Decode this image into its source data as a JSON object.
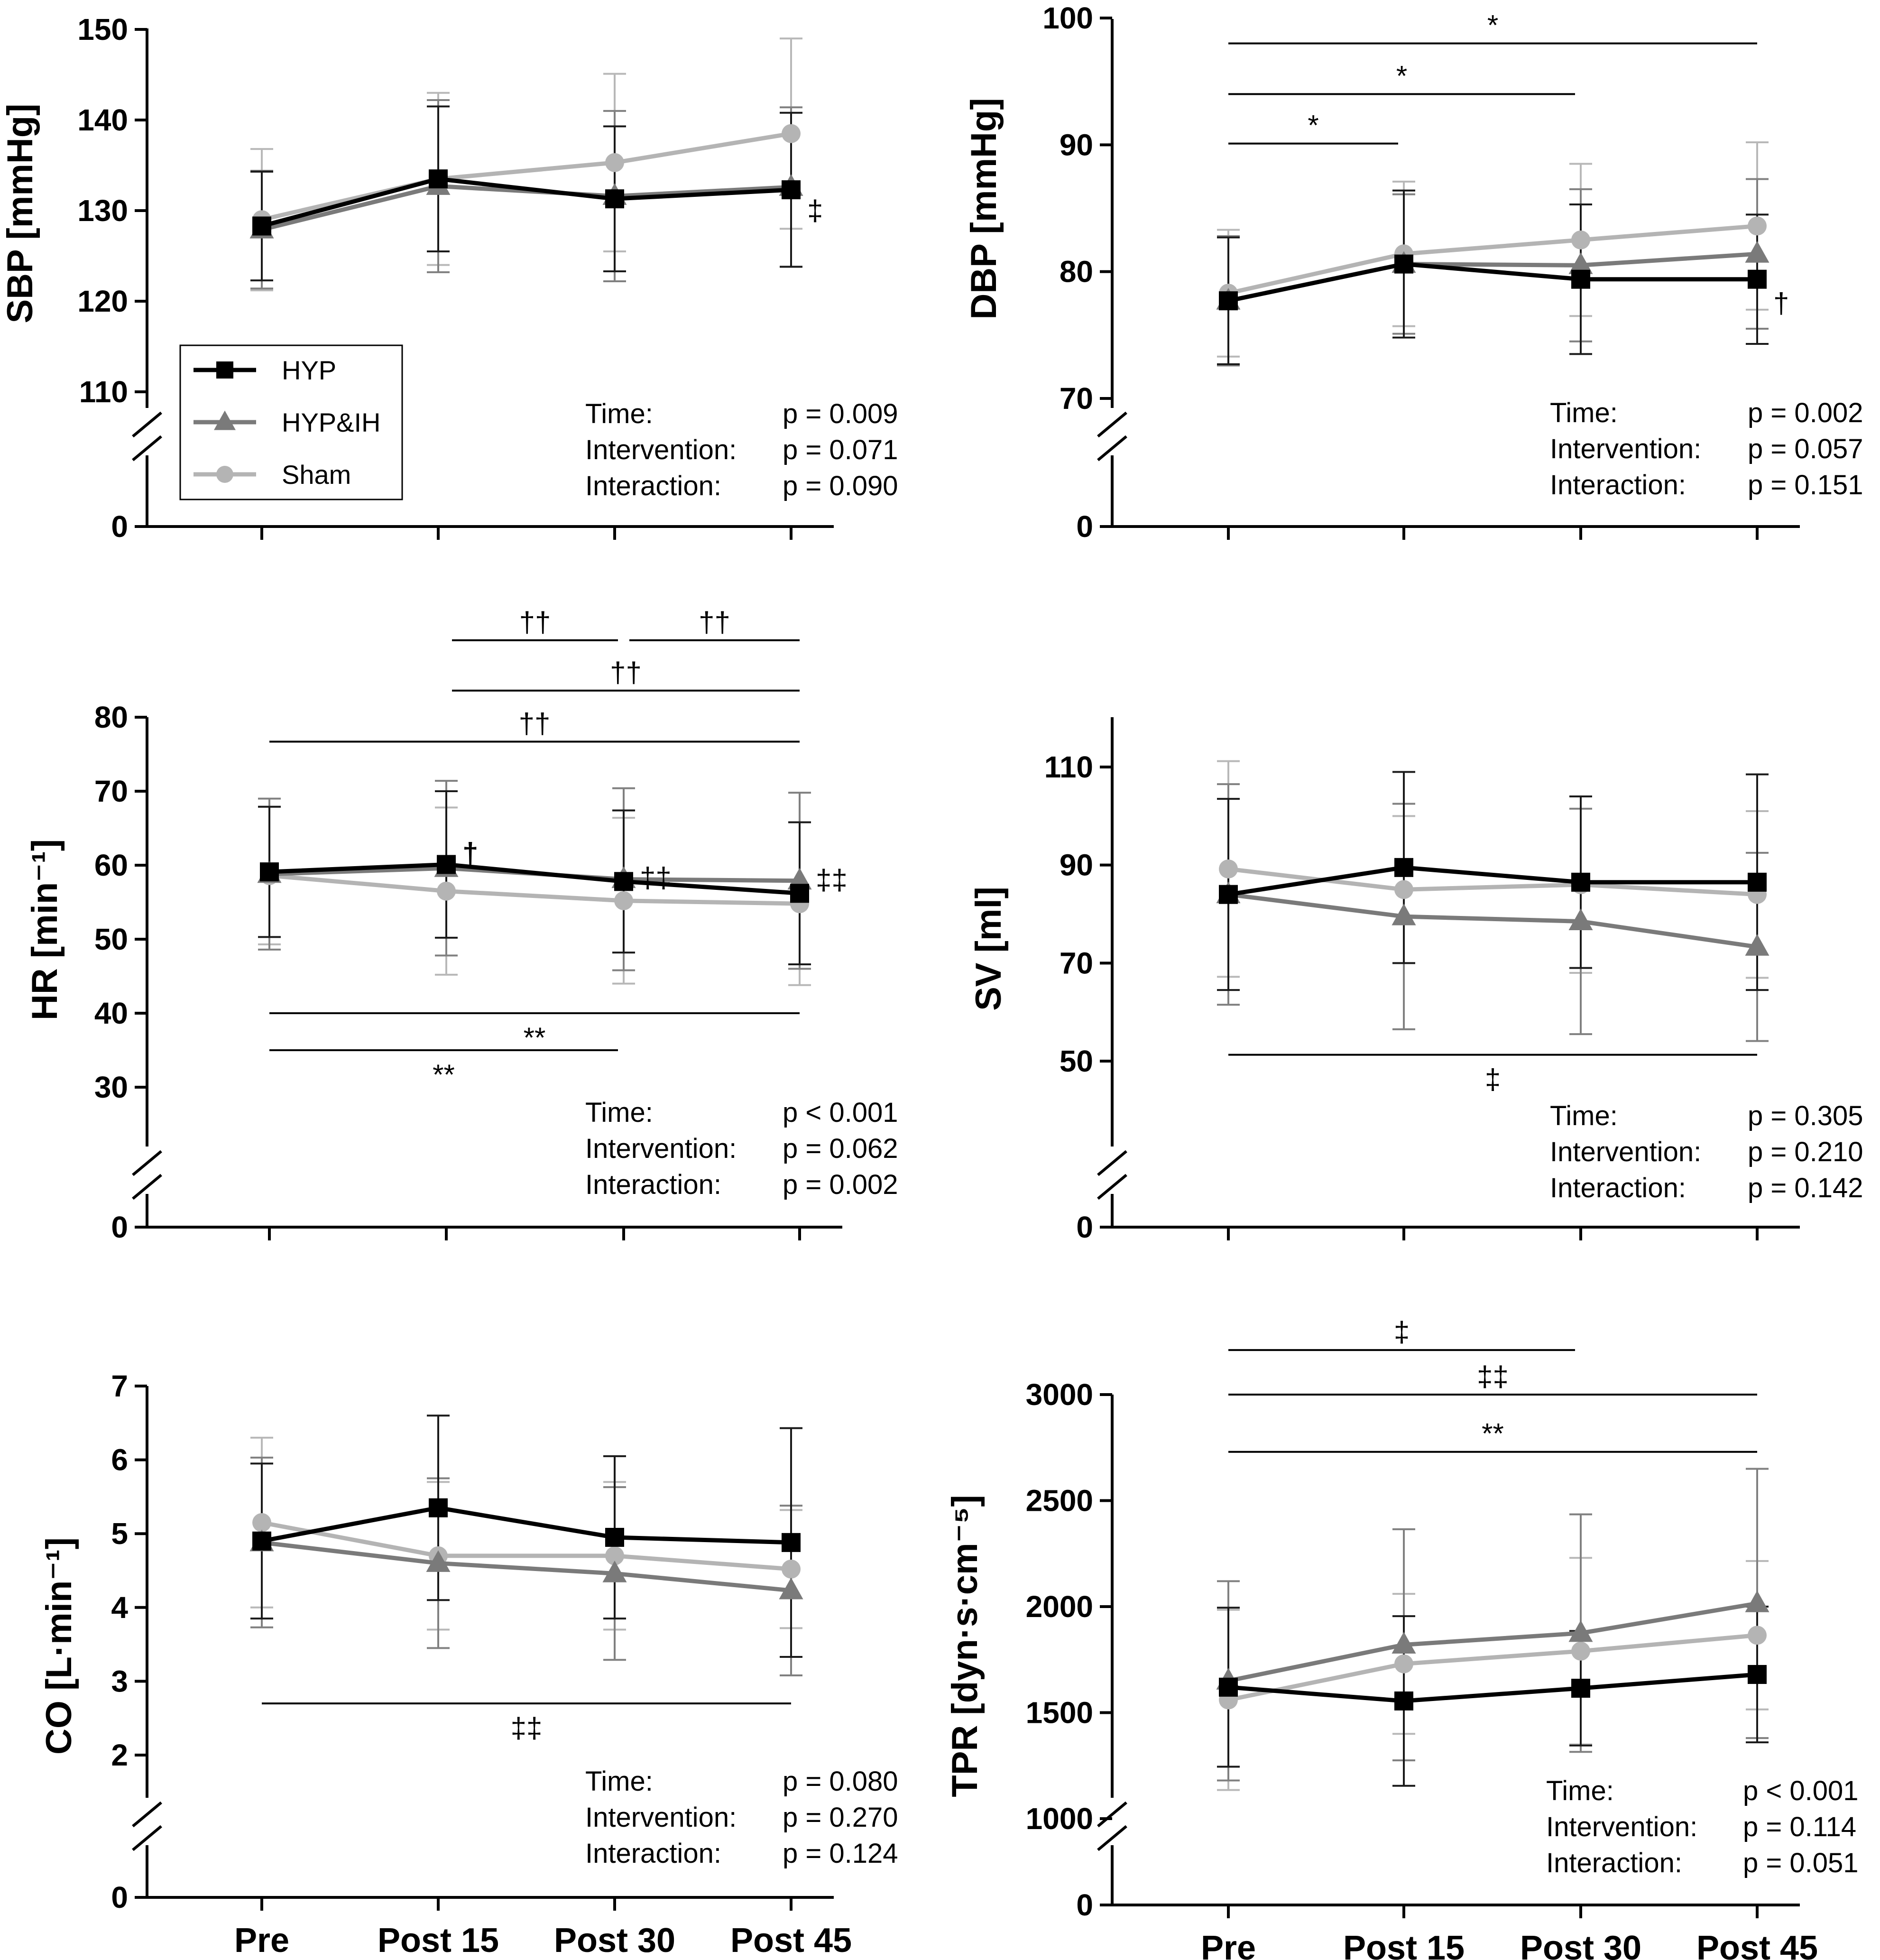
{
  "figure": {
    "x_categories": [
      "Pre",
      "Post 15",
      "Post 30",
      "Post 45"
    ],
    "legend": [
      {
        "name": "HYP",
        "marker": "square",
        "color": "#000000"
      },
      {
        "name": "HYP&IH",
        "marker": "triangle",
        "color": "#7a7a7a"
      },
      {
        "name": "Sham",
        "marker": "circle",
        "color": "#b4b4b4"
      }
    ]
  },
  "chart_data": [
    {
      "id": "sbp",
      "type": "line",
      "ylabel": "SBP [mmHg]",
      "ylim": [
        100,
        150
      ],
      "yticks": [
        110,
        120,
        130,
        140,
        150
      ],
      "axis_break": true,
      "zero_label": "0",
      "categories": [
        "Pre",
        "Post 15",
        "Post 30",
        "Post 45"
      ],
      "series": [
        {
          "name": "HYP",
          "values": [
            128.3,
            133.5,
            131.3,
            132.3
          ],
          "err": [
            6.0,
            8.0,
            8.0,
            8.5
          ]
        },
        {
          "name": "HYP&IH",
          "values": [
            127.9,
            132.7,
            131.6,
            132.6
          ],
          "err": [
            6.5,
            9.5,
            9.4,
            8.8
          ]
        },
        {
          "name": "Sham",
          "values": [
            129.0,
            133.5,
            135.3,
            138.5
          ],
          "err": [
            7.8,
            9.5,
            9.8,
            10.5
          ]
        }
      ],
      "stats": [
        {
          "label": "Time:",
          "value": "p = 0.009"
        },
        {
          "label": "Intervention:",
          "value": "p = 0.071"
        },
        {
          "label": "Interaction:",
          "value": "p = 0.090"
        }
      ],
      "markers": [
        {
          "text": "‡",
          "x": 3,
          "y": 130.0
        }
      ],
      "brackets": []
    },
    {
      "id": "dbp",
      "type": "line",
      "ylabel": "DBP [mmHg]",
      "ylim": [
        64,
        100
      ],
      "yticks": [
        70,
        80,
        90,
        100
      ],
      "axis_break": true,
      "zero_label": "0",
      "categories": [
        "Pre",
        "Post 15",
        "Post 30",
        "Post 45"
      ],
      "series": [
        {
          "name": "HYP",
          "values": [
            77.7,
            80.6,
            79.4,
            79.4
          ],
          "err": [
            5.0,
            5.8,
            5.9,
            5.1
          ]
        },
        {
          "name": "HYP&IH",
          "values": [
            77.7,
            80.6,
            80.5,
            81.4
          ],
          "err": [
            5.1,
            5.5,
            6.0,
            5.9
          ]
        },
        {
          "name": "Sham",
          "values": [
            78.3,
            81.4,
            82.5,
            83.6
          ],
          "err": [
            5.0,
            5.7,
            6.0,
            6.6
          ]
        }
      ],
      "stats": [
        {
          "label": "Time:",
          "value": "p = 0.002"
        },
        {
          "label": "Intervention:",
          "value": "p = 0.057"
        },
        {
          "label": "Interaction:",
          "value": "p = 0.151"
        }
      ],
      "markers": [
        {
          "text": "†",
          "x": 3,
          "y": 77.5
        }
      ],
      "brackets": [
        {
          "from": 0,
          "to": 3,
          "y": 98.0,
          "label": "*",
          "label_pos": "above"
        },
        {
          "from": 0,
          "to": 2,
          "y": 94.0,
          "label": "*",
          "label_pos": "above"
        },
        {
          "from": 0,
          "to": 1,
          "y": 90.1,
          "label": "*",
          "label_pos": "above"
        }
      ]
    },
    {
      "id": "hr",
      "type": "line",
      "ylabel": "HR [min⁻¹]",
      "ylim": [
        22,
        80
      ],
      "yticks": [
        30,
        40,
        50,
        60,
        70,
        80
      ],
      "axis_break": true,
      "zero_label": "0",
      "categories": [
        "Pre",
        "Post 15",
        "Post 30",
        "Post 45"
      ],
      "series": [
        {
          "name": "HYP",
          "values": [
            59.1,
            60.1,
            57.8,
            56.2
          ],
          "err": [
            8.8,
            9.9,
            9.6,
            9.6
          ]
        },
        {
          "name": "HYP&IH",
          "values": [
            58.8,
            59.6,
            58.1,
            57.9
          ],
          "err": [
            10.2,
            11.8,
            12.3,
            11.9
          ]
        },
        {
          "name": "Sham",
          "values": [
            58.6,
            56.5,
            55.2,
            54.8
          ],
          "err": [
            9.3,
            11.3,
            11.2,
            11.0
          ]
        }
      ],
      "stats": [
        {
          "label": "Time:",
          "value": "p < 0.001"
        },
        {
          "label": "Intervention:",
          "value": "p = 0.062"
        },
        {
          "label": "Interaction:",
          "value": "p = 0.002"
        }
      ],
      "markers": [
        {
          "text": "†",
          "x": 1,
          "y": 61.6,
          "bold": true
        },
        {
          "text": "‡‡",
          "x": 2,
          "y": 58.3
        },
        {
          "text": "‡‡",
          "x": 3,
          "y": 58.0
        }
      ],
      "brackets": [
        {
          "from": 1,
          "to": 2,
          "y": 90.4,
          "label": "††",
          "label_pos": "above"
        },
        {
          "from": 2,
          "to": 3,
          "y": 90.4,
          "label": "††",
          "label_pos": "above"
        },
        {
          "from": 1,
          "to": 3,
          "y": 83.6,
          "label": "††",
          "label_pos": "above"
        },
        {
          "from": 0,
          "to": 3,
          "y": 76.7,
          "label": "††",
          "label_pos": "above"
        },
        {
          "from": 0,
          "to": 3,
          "y": 40.0,
          "label": "**",
          "label_pos": "below"
        },
        {
          "from": 0,
          "to": 2,
          "y": 35.0,
          "label": "**",
          "label_pos": "below"
        }
      ]
    },
    {
      "id": "sv",
      "type": "line",
      "ylabel": "SV [ml]",
      "ylim": [
        30,
        120
      ],
      "yticks": [
        50,
        70,
        90,
        110
      ],
      "axis_break": true,
      "zero_label": "0",
      "categories": [
        "Pre",
        "Post 15",
        "Post 30",
        "Post 45"
      ],
      "series": [
        {
          "name": "HYP",
          "values": [
            84.0,
            89.5,
            86.5,
            86.5
          ],
          "err": [
            19.5,
            19.5,
            17.5,
            22.0
          ]
        },
        {
          "name": "HYP&IH",
          "values": [
            84.0,
            79.5,
            78.5,
            73.3
          ],
          "err": [
            22.5,
            23.0,
            23.0,
            19.2
          ]
        },
        {
          "name": "Sham",
          "values": [
            89.2,
            85.0,
            86.0,
            84.0
          ],
          "err": [
            22.0,
            15.0,
            18.0,
            17.0
          ]
        }
      ],
      "stats": [
        {
          "label": "Time:",
          "value": "p = 0.305"
        },
        {
          "label": "Intervention:",
          "value": "p = 0.210"
        },
        {
          "label": "Interaction:",
          "value": "p = 0.142"
        }
      ],
      "markers": [],
      "brackets": [
        {
          "from": 0,
          "to": 3,
          "y": 51.3,
          "label": "‡",
          "label_pos": "below"
        }
      ]
    },
    {
      "id": "co",
      "type": "line",
      "ylabel": "CO [L·min⁻¹]",
      "ylim": [
        1,
        7
      ],
      "yticks": [
        2,
        3,
        4,
        5,
        6,
        7
      ],
      "axis_break": true,
      "zero_label": "0",
      "categories": [
        "Pre",
        "Post 15",
        "Post 30",
        "Post 45"
      ],
      "series": [
        {
          "name": "HYP",
          "values": [
            4.9,
            5.35,
            4.95,
            4.88
          ],
          "err": [
            1.05,
            1.25,
            1.1,
            1.55
          ]
        },
        {
          "name": "HYP&IH",
          "values": [
            4.88,
            4.6,
            4.46,
            4.23
          ],
          "err": [
            1.15,
            1.15,
            1.17,
            1.15
          ]
        },
        {
          "name": "Sham",
          "values": [
            5.15,
            4.7,
            4.7,
            4.52
          ],
          "err": [
            1.15,
            1.0,
            1.0,
            0.8
          ]
        }
      ],
      "stats": [
        {
          "label": "Time:",
          "value": "p = 0.080"
        },
        {
          "label": "Intervention:",
          "value": "p = 0.270"
        },
        {
          "label": "Interaction:",
          "value": "p = 0.124"
        }
      ],
      "markers": [],
      "brackets": [
        {
          "from": 0,
          "to": 3,
          "y": 2.7,
          "label": "‡‡",
          "label_pos": "below"
        }
      ]
    },
    {
      "id": "tpr",
      "type": "line",
      "ylabel": "TPR [dyn·s·cm⁻⁵]",
      "ylim": [
        850,
        3000
      ],
      "yticks": [
        1000,
        1500,
        2000,
        2500,
        3000
      ],
      "axis_break": true,
      "zero_label": "0",
      "categories": [
        "Pre",
        "Post 15",
        "Post 30",
        "Post 45"
      ],
      "series": [
        {
          "name": "HYP",
          "values": [
            1620,
            1555,
            1615,
            1680
          ],
          "err": [
            375,
            400,
            270,
            320
          ]
        },
        {
          "name": "HYP&IH",
          "values": [
            1650,
            1820,
            1875,
            2015
          ],
          "err": [
            470,
            545,
            560,
            635
          ]
        },
        {
          "name": "Sham",
          "values": [
            1560,
            1730,
            1790,
            1865
          ],
          "err": [
            425,
            330,
            440,
            350
          ]
        }
      ],
      "stats": [
        {
          "label": "Time:",
          "value": "p < 0.001"
        },
        {
          "label": "Intervention:",
          "value": "p = 0.114"
        },
        {
          "label": "Interaction:",
          "value": "p = 0.051"
        }
      ],
      "markers": [],
      "brackets": [
        {
          "from": 0,
          "to": 2,
          "y": 3210,
          "label": "‡",
          "label_pos": "above"
        },
        {
          "from": 0,
          "to": 3,
          "y": 3000,
          "label": "‡‡",
          "label_pos": "above"
        },
        {
          "from": 0,
          "to": 3,
          "y": 2730,
          "label": "**",
          "label_pos": "above"
        }
      ]
    }
  ]
}
